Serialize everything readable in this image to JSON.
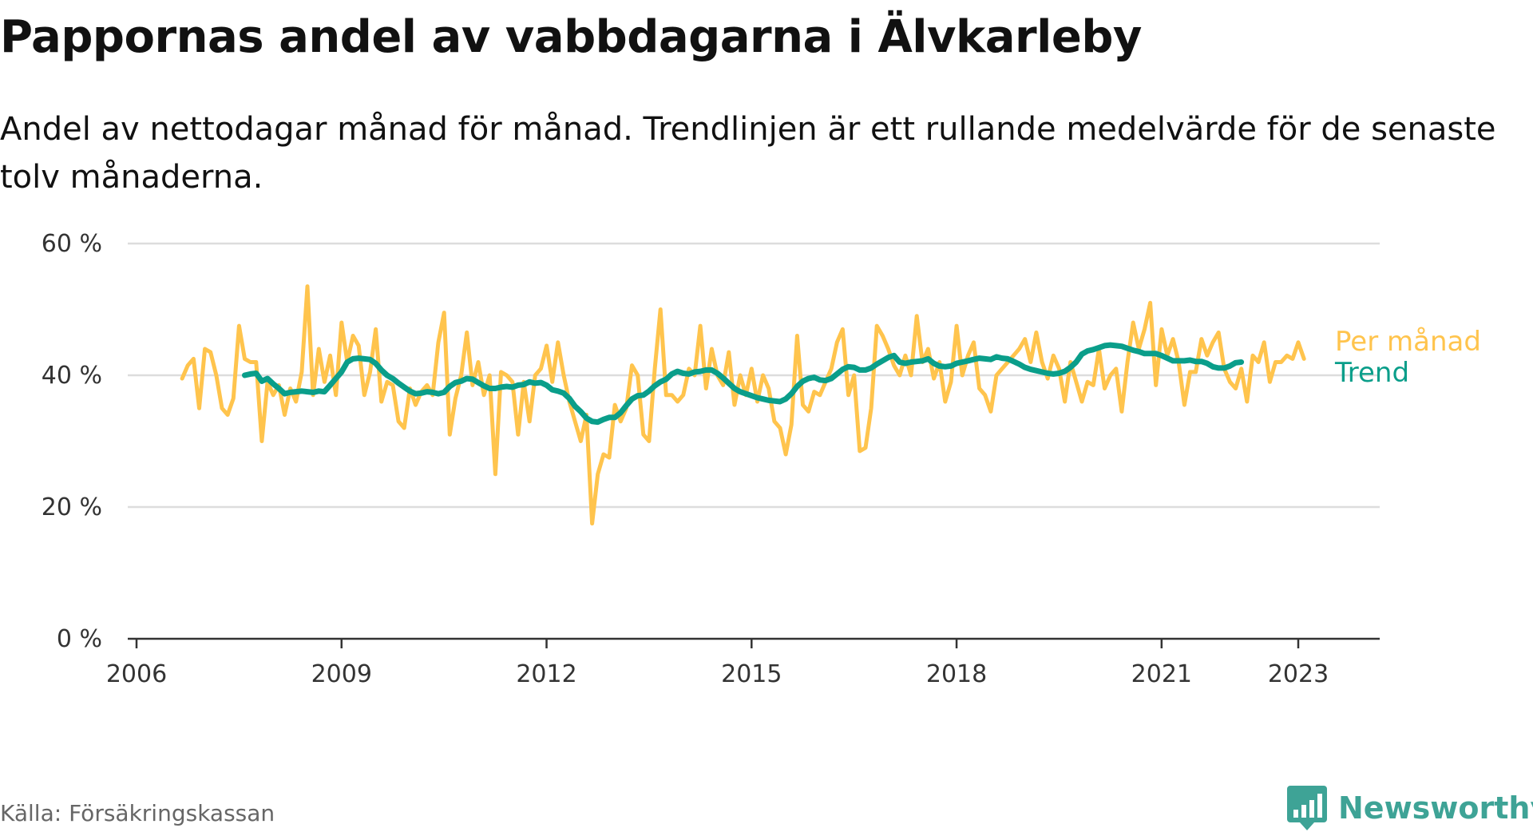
{
  "header": {
    "title": "Pappornas andel av vabbdagarna i Älvkarleby",
    "subtitle": "Andel av nettodagar månad för månad. Trendlinjen är ett rullande medelvärde för de senaste tolv månaderna."
  },
  "footer": {
    "source": "Källa: Försäkringskassan",
    "brand": "Newsworthy"
  },
  "colors": {
    "per_month": "#ffc44d",
    "trend": "#0a9e8a",
    "grid": "#dddddd",
    "axis": "#333333",
    "brand": "#3ea396"
  },
  "chart_data": {
    "type": "line",
    "title": "Pappornas andel av vabbdagarna i Älvkarleby",
    "xlabel": "",
    "ylabel": "",
    "xlim": [
      2006.0,
      2024.0
    ],
    "ylim": [
      0,
      60
    ],
    "yticks": [
      0,
      20,
      40,
      60
    ],
    "ytick_labels": [
      "0 %",
      "20 %",
      "40 %",
      "60 %"
    ],
    "xticks": [
      2006,
      2009,
      2012,
      2015,
      2018,
      2021,
      2023
    ],
    "xtick_labels": [
      "2006",
      "2009",
      "2012",
      "2015",
      "2018",
      "2021",
      "2023"
    ],
    "grid": true,
    "legend_position": "right-end-of-lines",
    "series": [
      {
        "name": "Per månad",
        "start": 2006.667,
        "step_months": 1,
        "values": [
          39.5,
          41.5,
          42.5,
          35,
          44,
          43.5,
          40,
          35,
          34,
          36.5,
          47.5,
          42.5,
          42,
          42,
          30,
          39,
          37,
          38.5,
          34,
          38,
          36,
          40.5,
          53.5,
          37,
          44,
          39,
          43,
          37,
          48,
          42,
          46,
          44.5,
          37,
          40.5,
          47,
          36,
          39,
          38.5,
          33,
          32,
          38,
          35.5,
          37.5,
          38.5,
          37,
          45,
          49.5,
          31,
          36.5,
          40,
          46.5,
          38.5,
          42,
          37,
          40,
          25,
          40.5,
          40,
          39,
          31,
          39,
          33,
          40,
          41,
          44.5,
          39,
          45,
          40,
          36,
          33,
          30,
          34,
          17.5,
          25,
          28,
          27.5,
          35.5,
          33,
          35,
          41.5,
          40,
          31,
          30,
          41,
          50,
          37,
          37,
          36,
          37,
          41,
          40,
          47.5,
          38,
          44,
          40,
          38.5,
          43.5,
          35.5,
          40,
          37,
          41,
          36,
          40,
          38,
          33,
          32,
          28,
          32.5,
          46,
          35.5,
          34.5,
          37.5,
          37,
          39,
          41,
          45,
          47,
          37,
          40,
          28.5,
          29,
          35,
          47.5,
          46,
          44,
          41.5,
          40,
          43,
          40,
          49,
          42,
          44,
          39.5,
          42,
          36,
          39,
          47.5,
          40,
          43,
          45,
          38,
          37,
          34.5,
          40,
          41,
          42,
          43,
          44,
          45.5,
          42,
          46.5,
          42,
          39.5,
          43,
          41,
          36,
          42,
          39,
          36,
          39,
          38.5,
          44,
          38,
          40,
          41,
          34.5,
          42,
          48,
          44,
          47,
          51,
          38.5,
          47,
          43,
          45.5,
          42,
          35.5,
          40.5,
          40.5,
          45.5,
          43,
          45,
          46.5,
          41,
          39,
          38,
          41,
          36,
          43,
          42,
          45,
          39,
          42,
          42,
          43,
          42.5,
          45,
          42.5
        ]
      },
      {
        "name": "Trend",
        "start": 2007.583,
        "step_months": 1,
        "values": [
          40,
          40.2,
          40.3,
          39.1,
          39.5,
          38.7,
          38,
          37.2,
          37.4,
          37.5,
          37.6,
          37.5,
          37.4,
          37.6,
          37.5,
          38.5,
          39.5,
          40.5,
          42,
          42.5,
          42.6,
          42.5,
          42.4,
          41.8,
          40.8,
          40,
          39.5,
          38.8,
          38.2,
          37.6,
          37.2,
          37.3,
          37.5,
          37.4,
          37.2,
          37.4,
          38.3,
          38.9,
          39.1,
          39.5,
          39.4,
          38.9,
          38.4,
          38,
          38,
          38.2,
          38.3,
          38.2,
          38.5,
          38.6,
          39,
          38.8,
          38.9,
          38.5,
          37.8,
          37.6,
          37.3,
          36.5,
          35.3,
          34.5,
          33.5,
          33,
          32.9,
          33.3,
          33.6,
          33.6,
          34.3,
          35.4,
          36.4,
          36.9,
          37,
          37.6,
          38.4,
          39,
          39.4,
          40.2,
          40.6,
          40.3,
          40.2,
          40.5,
          40.6,
          40.8,
          40.8,
          40.3,
          39.6,
          38.8,
          38,
          37.5,
          37.2,
          36.9,
          36.6,
          36.4,
          36.2,
          36.1,
          36,
          36.4,
          37.2,
          38.3,
          39.1,
          39.5,
          39.7,
          39.3,
          39.2,
          39.5,
          40.2,
          40.9,
          41.3,
          41.2,
          40.8,
          40.8,
          41.1,
          41.7,
          42.2,
          42.7,
          43,
          42,
          41.8,
          42,
          42.1,
          42.2,
          42.5,
          41.8,
          41.4,
          41.3,
          41.4,
          41.8,
          42,
          42.2,
          42.4,
          42.6,
          42.5,
          42.4,
          42.8,
          42.6,
          42.5,
          42.1,
          41.7,
          41.2,
          40.9,
          40.7,
          40.5,
          40.3,
          40.2,
          40.3,
          40.6,
          41.2,
          42,
          43.2,
          43.7,
          43.9,
          44.2,
          44.5,
          44.6,
          44.5,
          44.4,
          44.1,
          43.8,
          43.6,
          43.3,
          43.3,
          43.3,
          43,
          42.6,
          42.2,
          42.2,
          42.2,
          42.3,
          42.1,
          42.1,
          41.8,
          41.3,
          41.1,
          41.1,
          41.4,
          41.9,
          42
        ]
      }
    ]
  }
}
